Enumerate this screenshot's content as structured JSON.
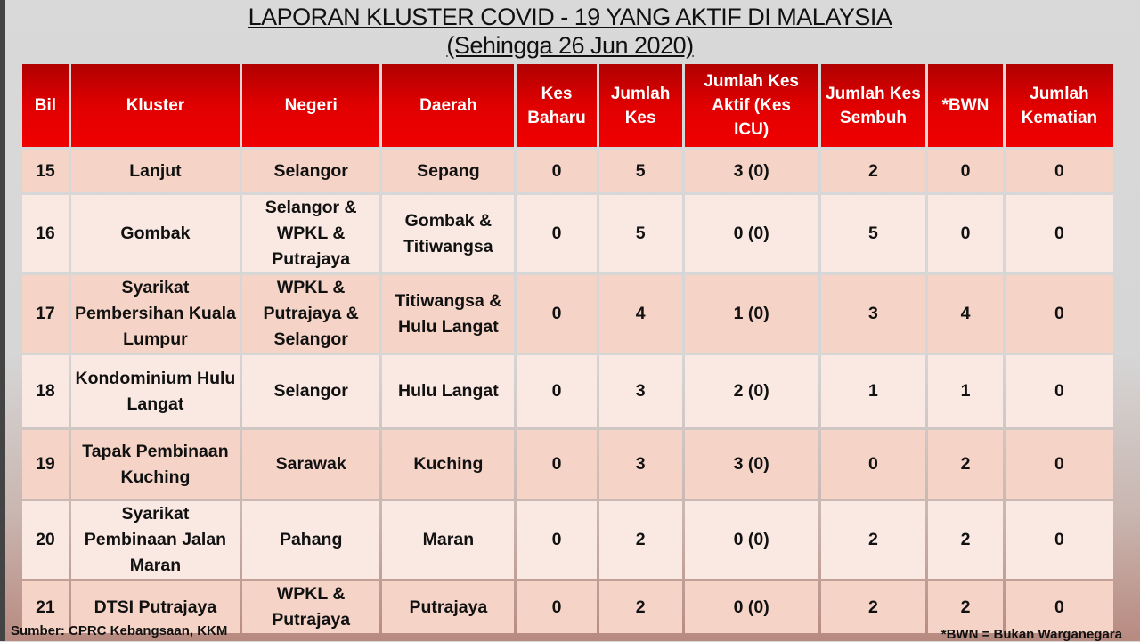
{
  "title": "LAPORAN KLUSTER COVID - 19 YANG AKTIF DI MALAYSIA",
  "subtitle": "(Sehingga 26 Jun 2020)",
  "headers": [
    "Bil",
    "Kluster",
    "Negeri",
    "Daerah",
    "Kes Baharu",
    "Jumlah Kes",
    "Jumlah Kes Aktif (Kes ICU)",
    "Jumlah Kes Sembuh",
    "*BWN",
    "Jumlah Kematian"
  ],
  "rows": [
    [
      "15",
      "Lanjut",
      "Selangor",
      "Sepang",
      "0",
      "5",
      "3 (0)",
      "2",
      "0",
      "0"
    ],
    [
      "16",
      "Gombak",
      "Selangor & WPKL & Putrajaya",
      "Gombak & Titiwangsa",
      "0",
      "5",
      "0 (0)",
      "5",
      "0",
      "0"
    ],
    [
      "17",
      "Syarikat Pembersihan Kuala Lumpur",
      "WPKL & Putrajaya & Selangor",
      "Titiwangsa & Hulu Langat",
      "0",
      "4",
      "1 (0)",
      "3",
      "4",
      "0"
    ],
    [
      "18",
      "Kondominium Hulu Langat",
      "Selangor",
      "Hulu Langat",
      "0",
      "3",
      "2 (0)",
      "1",
      "1",
      "0"
    ],
    [
      "19",
      "Tapak Pembinaan Kuching",
      "Sarawak",
      "Kuching",
      "0",
      "3",
      "3 (0)",
      "0",
      "2",
      "0"
    ],
    [
      "20",
      "Syarikat Pembinaan Jalan Maran",
      "Pahang",
      "Maran",
      "0",
      "2",
      "0 (0)",
      "2",
      "2",
      "0"
    ],
    [
      "21",
      "DTSI Putrajaya",
      "WPKL & Putrajaya",
      "Putrajaya",
      "0",
      "2",
      "0 (0)",
      "2",
      "2",
      "0"
    ]
  ],
  "source": "Sumber: CPRC Kebangsaan, KKM",
  "note": "*BWN = Bukan Warganegara",
  "colors": {
    "header": "#e00000",
    "row_odd": "#f5d3c7",
    "row_even": "#fae9e3"
  }
}
